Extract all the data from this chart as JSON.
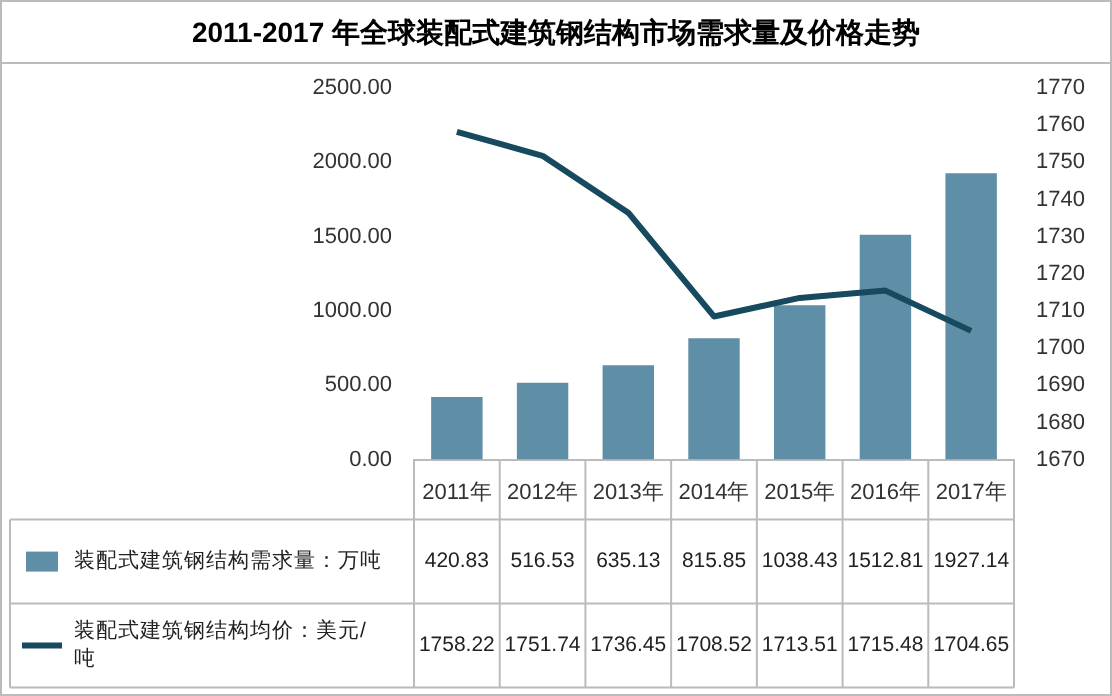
{
  "chart_data": {
    "type": "bar",
    "title": "2011-2017 年全球装配式建筑钢结构市场需求量及价格走势",
    "categories": [
      "2011年",
      "2012年",
      "2013年",
      "2014年",
      "2015年",
      "2016年",
      "2017年"
    ],
    "series": [
      {
        "name": "装配式建筑钢结构需求量：万吨",
        "color": "#5f8fa6",
        "values": [
          420.83,
          516.53,
          635.13,
          815.85,
          1038.43,
          1512.81,
          1927.14
        ]
      },
      {
        "name": "装配式建筑钢结构均价：美元/吨",
        "type": "line",
        "axis": "y2",
        "color": "#17495f",
        "values": [
          1758.22,
          1751.74,
          1736.45,
          1708.52,
          1713.51,
          1715.48,
          1704.65
        ]
      }
    ],
    "ylim": [
      0,
      2500
    ],
    "yticks": [
      {
        "value": 0,
        "label": "0.00"
      },
      {
        "value": 500,
        "label": "500.00"
      },
      {
        "value": 1000,
        "label": "1000.00"
      },
      {
        "value": 1500,
        "label": "1500.00"
      },
      {
        "value": 2000,
        "label": "2000.00"
      },
      {
        "value": 2500,
        "label": "2500.00"
      }
    ],
    "y2lim": [
      1670,
      1770
    ],
    "y2ticks": [
      1670,
      1680,
      1690,
      1700,
      1710,
      1720,
      1730,
      1740,
      1750,
      1760,
      1770
    ],
    "data_labels": true,
    "legend": "bottom",
    "grid": false,
    "marker": "none",
    "line_style": "solid"
  }
}
